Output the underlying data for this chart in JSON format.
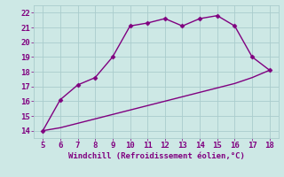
{
  "x": [
    5,
    6,
    7,
    8,
    9,
    10,
    11,
    12,
    13,
    14,
    15,
    16,
    17,
    18
  ],
  "y_upper": [
    14,
    16.1,
    17.1,
    17.6,
    19.0,
    21.1,
    21.3,
    21.6,
    21.1,
    21.6,
    21.8,
    21.1,
    19.0,
    18.1
  ],
  "y_lower": [
    14,
    14.2,
    14.5,
    14.8,
    15.1,
    15.4,
    15.7,
    16.0,
    16.3,
    16.6,
    16.9,
    17.2,
    17.6,
    18.1
  ],
  "xlim": [
    4.5,
    18.5
  ],
  "ylim": [
    13.5,
    22.5
  ],
  "xticks": [
    5,
    6,
    7,
    8,
    9,
    10,
    11,
    12,
    13,
    14,
    15,
    16,
    17,
    18
  ],
  "yticks": [
    14,
    15,
    16,
    17,
    18,
    19,
    20,
    21,
    22
  ],
  "xlabel": "Windchill (Refroidissement éolien,°C)",
  "line_color": "#800080",
  "bg_color": "#cde8e5",
  "grid_color": "#aacccc",
  "marker": "D",
  "marker_size": 2.5,
  "linewidth": 1.0,
  "font_color": "#800080",
  "font_size": 6.5,
  "xlabel_fontsize": 6.5
}
